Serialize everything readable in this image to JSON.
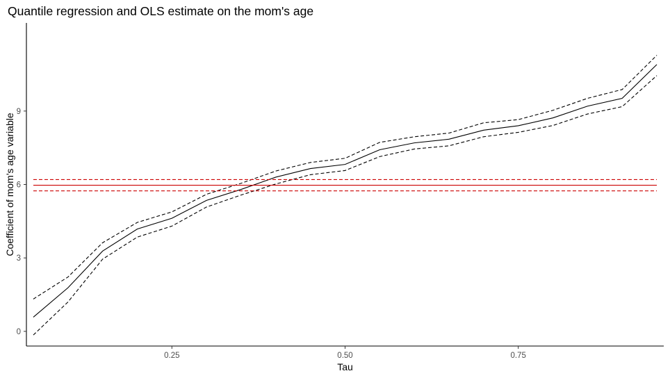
{
  "chart_data": {
    "type": "line",
    "title": "Quantile regression and OLS estimate on the mom's age",
    "xlabel": "Tau",
    "ylabel": "Coefficient of mom's age variable",
    "xlim": [
      0.04,
      0.96
    ],
    "ylim": [
      -0.6,
      12.6
    ],
    "x_ticks": [
      0.25,
      0.5,
      0.75
    ],
    "x_tick_labels": [
      "0.25",
      "0.50",
      "0.75"
    ],
    "y_ticks": [
      0,
      3,
      6,
      9
    ],
    "y_tick_labels": [
      "0",
      "3",
      "6",
      "9"
    ],
    "grid": false,
    "legend": "none",
    "x": [
      0.05,
      0.1,
      0.15,
      0.2,
      0.25,
      0.3,
      0.35,
      0.4,
      0.45,
      0.5,
      0.55,
      0.6,
      0.65,
      0.7,
      0.75,
      0.8,
      0.85,
      0.9,
      0.95
    ],
    "series": [
      {
        "role": "quantile-estimate",
        "color": "#000000",
        "dash": "solid",
        "values": [
          0.58,
          1.78,
          3.28,
          4.18,
          4.62,
          5.35,
          5.8,
          6.3,
          6.65,
          6.82,
          7.42,
          7.7,
          7.85,
          8.22,
          8.4,
          8.72,
          9.2,
          9.52,
          10.9
        ]
      },
      {
        "role": "quantile-upper-ci",
        "color": "#000000",
        "dash": "dashed",
        "values": [
          1.32,
          2.22,
          3.62,
          4.45,
          4.88,
          5.6,
          6.05,
          6.55,
          6.9,
          7.07,
          7.72,
          7.95,
          8.1,
          8.52,
          8.65,
          9.03,
          9.52,
          9.88,
          11.28
        ]
      },
      {
        "role": "quantile-lower-ci",
        "color": "#000000",
        "dash": "dashed",
        "values": [
          -0.15,
          1.2,
          2.95,
          3.85,
          4.3,
          5.08,
          5.57,
          6.02,
          6.4,
          6.57,
          7.14,
          7.45,
          7.58,
          7.95,
          8.13,
          8.41,
          8.88,
          9.18,
          10.45
        ]
      },
      {
        "role": "ols-estimate",
        "color": "#cc0000",
        "dash": "solid",
        "values": [
          5.97,
          5.97,
          5.97,
          5.97,
          5.97,
          5.97,
          5.97,
          5.97,
          5.97,
          5.97,
          5.97,
          5.97,
          5.97,
          5.97,
          5.97,
          5.97,
          5.97,
          5.97,
          5.97
        ]
      },
      {
        "role": "ols-upper-ci",
        "color": "#cc0000",
        "dash": "dashed",
        "values": [
          6.2,
          6.2,
          6.2,
          6.2,
          6.2,
          6.2,
          6.2,
          6.2,
          6.2,
          6.2,
          6.2,
          6.2,
          6.2,
          6.2,
          6.2,
          6.2,
          6.2,
          6.2,
          6.2
        ]
      },
      {
        "role": "ols-lower-ci",
        "color": "#cc0000",
        "dash": "dashed",
        "values": [
          5.74,
          5.74,
          5.74,
          5.74,
          5.74,
          5.74,
          5.74,
          5.74,
          5.74,
          5.74,
          5.74,
          5.74,
          5.74,
          5.74,
          5.74,
          5.74,
          5.74,
          5.74,
          5.74
        ]
      }
    ]
  }
}
